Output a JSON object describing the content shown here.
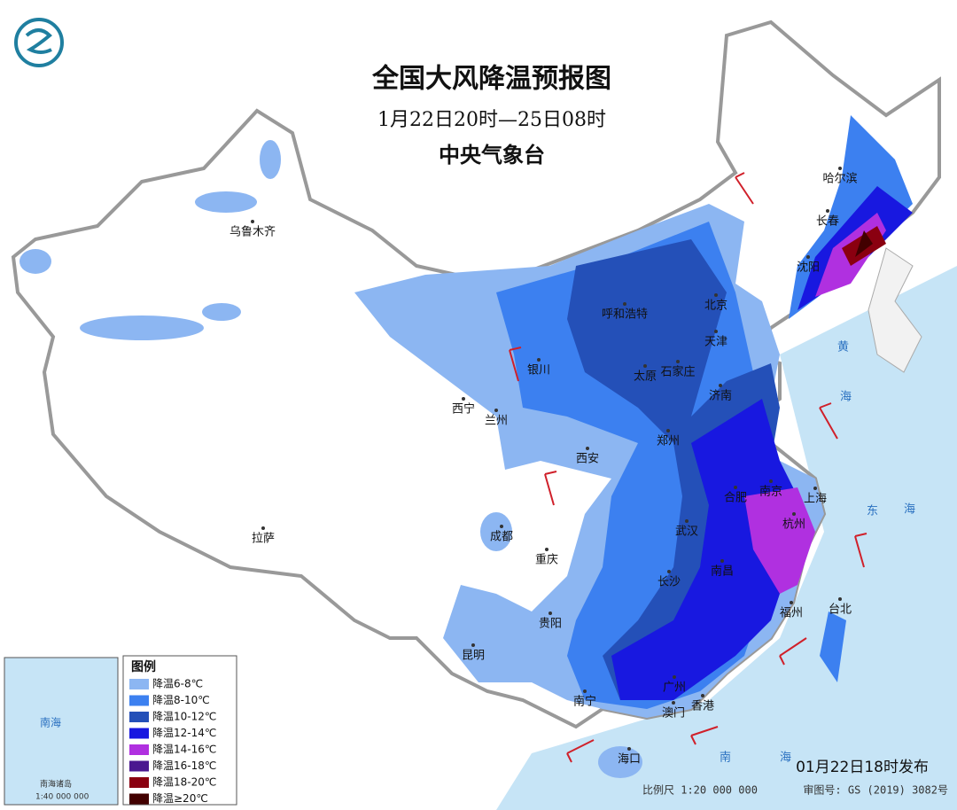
{
  "header": {
    "title": "全国大风降温预报图",
    "period": "1月22日20时—25日08时",
    "issuer": "中央气象台"
  },
  "legend": {
    "title": "图例",
    "items": [
      {
        "label": "降温6-8℃",
        "color": "#8cb6f2"
      },
      {
        "label": "降温8-10℃",
        "color": "#3c80f0"
      },
      {
        "label": "降温10-12℃",
        "color": "#2450b8"
      },
      {
        "label": "降温12-14℃",
        "color": "#1818e0"
      },
      {
        "label": "降温14-16℃",
        "color": "#b030e0"
      },
      {
        "label": "降温16-18℃",
        "color": "#4a1890"
      },
      {
        "label": "降温18-20℃",
        "color": "#8a0010"
      },
      {
        "label": "降温≥20℃",
        "color": "#420000"
      }
    ]
  },
  "cities": [
    "乌鲁木齐",
    "哈尔滨",
    "长春",
    "沈阳",
    "呼和浩特",
    "北京",
    "天津",
    "银川",
    "石家庄",
    "太原",
    "济南",
    "西宁",
    "兰州",
    "郑州",
    "西安",
    "合肥",
    "南京",
    "上海",
    "成都",
    "杭州",
    "武汉",
    "重庆",
    "拉萨",
    "长沙",
    "南昌",
    "福州",
    "台北",
    "贵阳",
    "昆明",
    "广州",
    "南宁",
    "香港",
    "澳门",
    "海口"
  ],
  "seas": [
    "黄",
    "海",
    "东",
    "海",
    "南",
    "海"
  ],
  "inset": {
    "labels": [
      "南海",
      "南海诸岛",
      "1:40 000 000"
    ]
  },
  "footer": {
    "release": "01月22日18时发布",
    "scale": "比例尺 1:20 000 000",
    "approval": "审图号: GS (2019) 3082号"
  }
}
